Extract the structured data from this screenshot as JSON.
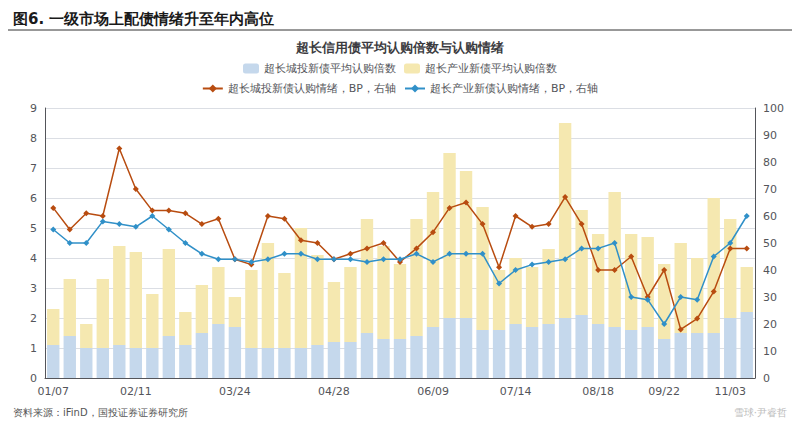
{
  "chart_data": {
    "type": "bar",
    "title": "图6. 一级市场上配债情绪升至年内高位",
    "subtitle": "超长信用债平均认购倍数与认购情绪",
    "annotations": [
      "资料来源：iFinD，国投证券证券研究所",
      "雪球·尹睿哲"
    ],
    "categories": [
      "01/07",
      null,
      null,
      null,
      null,
      "02/11",
      null,
      null,
      null,
      null,
      null,
      "03/24",
      null,
      null,
      null,
      null,
      null,
      "04/28",
      null,
      null,
      null,
      null,
      null,
      "06/09",
      null,
      null,
      null,
      null,
      "07/14",
      null,
      null,
      null,
      null,
      "08/18",
      null,
      null,
      null,
      "09/22",
      null,
      null,
      null,
      "11/03",
      null
    ],
    "series": [
      {
        "name": "超长城投新债平均认购倍数",
        "type": "bar",
        "color": "#c5d8ec",
        "values": [
          1.1,
          1.4,
          1.0,
          1.0,
          1.1,
          1.0,
          1.0,
          1.4,
          1.1,
          1.5,
          1.8,
          1.7,
          1.0,
          1.0,
          1.0,
          1.0,
          1.1,
          1.2,
          1.2,
          1.5,
          1.3,
          1.3,
          1.4,
          1.7,
          2.0,
          2.0,
          1.6,
          1.6,
          1.8,
          1.7,
          1.8,
          2.0,
          2.1,
          1.8,
          1.7,
          1.6,
          1.7,
          1.3,
          1.5,
          1.5,
          1.5,
          2.0,
          2.2
        ]
      },
      {
        "name": "超长产业新债平均认购倍数",
        "type": "bar",
        "color": "#f5e8b0",
        "values": [
          1.2,
          1.9,
          0.8,
          2.3,
          3.3,
          3.2,
          1.8,
          2.9,
          1.1,
          1.6,
          1.9,
          1.0,
          2.6,
          3.5,
          2.5,
          4.0,
          3.0,
          2.0,
          2.5,
          3.8,
          3.1,
          2.5,
          3.9,
          4.5,
          5.5,
          4.9,
          4.1,
          2.0,
          2.2,
          2.0,
          2.5,
          6.5,
          3.5,
          3.0,
          4.5,
          3.2,
          3.0,
          2.5,
          3.0,
          2.5,
          4.5,
          3.3,
          1.5
        ]
      },
      {
        "name": "超长城投新债认购情绪，BP，右轴",
        "type": "line",
        "axis": "y2",
        "marker": "diamond",
        "color": "#b84c10",
        "values": [
          63,
          55,
          61,
          60,
          85,
          70,
          62,
          62,
          61,
          57,
          59,
          44,
          42,
          60,
          59,
          51,
          50,
          44,
          46,
          48,
          50,
          43,
          48,
          54,
          63,
          65,
          57,
          41,
          60,
          56,
          57,
          67,
          57,
          40,
          40,
          45,
          30,
          40,
          18,
          22,
          32,
          48,
          48
        ]
      },
      {
        "name": "超长产业新债认购情绪，BP，右轴",
        "type": "line",
        "axis": "y2",
        "marker": "diamond",
        "color": "#3090c8",
        "values": [
          55,
          50,
          50,
          58,
          57,
          56,
          60,
          55,
          50,
          46,
          44,
          44,
          43,
          44,
          46,
          46,
          44,
          44,
          44,
          43,
          44,
          44,
          46,
          43,
          46,
          46,
          46,
          35,
          40,
          42,
          43,
          44,
          48,
          48,
          50,
          30,
          29,
          20,
          30,
          29,
          45,
          50,
          60
        ]
      }
    ],
    "stacked": true,
    "ylim": [
      0,
      9
    ],
    "yticks": [
      0,
      1,
      2,
      3,
      4,
      5,
      6,
      7,
      8,
      9
    ],
    "y2lim": [
      0,
      100
    ],
    "y2ticks": [
      0,
      10,
      20,
      30,
      40,
      50,
      60,
      70,
      80,
      90,
      100
    ],
    "grid": true,
    "legend": "top"
  }
}
